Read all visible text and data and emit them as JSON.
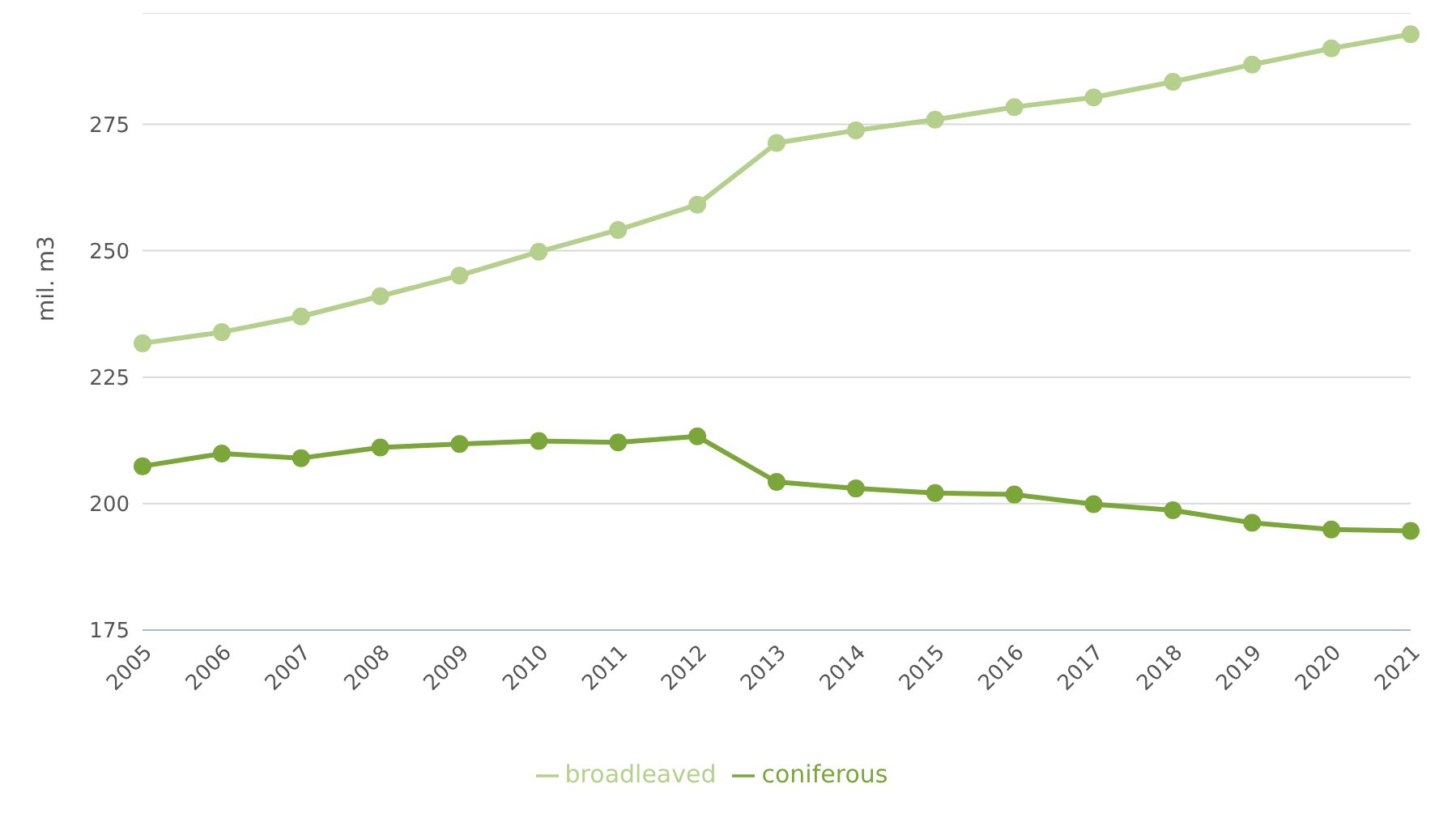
{
  "chart_data": {
    "type": "line",
    "ylabel": "mil. m3",
    "categories": [
      "2005",
      "2006",
      "2007",
      "2008",
      "2009",
      "2010",
      "2011",
      "2012",
      "2013",
      "2014",
      "2015",
      "2016",
      "2017",
      "2018",
      "2019",
      "2020",
      "2021"
    ],
    "series": [
      {
        "name": "broadleaved",
        "color": "#b5d08c",
        "values": [
          231.7,
          233.9,
          237.0,
          241.0,
          245.1,
          249.8,
          254.1,
          259.1,
          271.3,
          273.8,
          275.9,
          278.4,
          280.3,
          283.4,
          286.8,
          290.0,
          292.8
        ]
      },
      {
        "name": "coniferous",
        "color": "#7aa63a",
        "values": [
          207.4,
          209.9,
          209.0,
          211.1,
          211.8,
          212.4,
          212.1,
          213.3,
          204.3,
          203.0,
          202.1,
          201.8,
          199.9,
          198.7,
          196.2,
          194.9,
          194.6
        ]
      }
    ],
    "ylim": [
      175,
      297
    ],
    "yticks": [
      175,
      200,
      225,
      250,
      275
    ],
    "grid": "y",
    "legend": "bottom",
    "marker": "circle",
    "line_style": "solid"
  }
}
